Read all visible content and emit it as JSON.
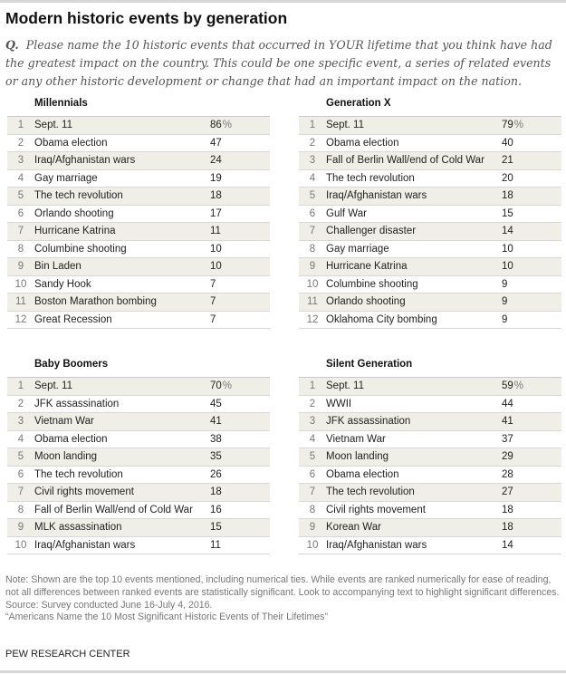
{
  "title": "Modern historic events by generation",
  "question_prefix": "Q.",
  "question": "Please name the 10 historic events that occurred in YOUR lifetime that you think have had the greatest impact on the country. This could be one specific event, a series of related events or any other historic development or change that had an important impact on the nation.",
  "percent_sign": "%",
  "chart_data": {
    "type": "table",
    "tables": [
      {
        "group": "Millennials",
        "rows": [
          [
            "1",
            "Sept. 11",
            86
          ],
          [
            "2",
            "Obama election",
            47
          ],
          [
            "3",
            "Iraq/Afghanistan wars",
            24
          ],
          [
            "4",
            "Gay marriage",
            19
          ],
          [
            "5",
            "The tech revolution",
            18
          ],
          [
            "6",
            "Orlando shooting",
            17
          ],
          [
            "7",
            "Hurricane Katrina",
            11
          ],
          [
            "8",
            "Columbine shooting",
            10
          ],
          [
            "9",
            "Bin Laden",
            10
          ],
          [
            "10",
            "Sandy Hook",
            7
          ],
          [
            "11",
            "Boston Marathon bombing",
            7
          ],
          [
            "12",
            "Great Recession",
            7
          ]
        ]
      },
      {
        "group": "Generation X",
        "rows": [
          [
            "1",
            "Sept. 11",
            79
          ],
          [
            "2",
            "Obama election",
            40
          ],
          [
            "3",
            "Fall of Berlin Wall/end of Cold War",
            21
          ],
          [
            "4",
            "The tech revolution",
            20
          ],
          [
            "5",
            "Iraq/Afghanistan wars",
            18
          ],
          [
            "6",
            "Gulf War",
            15
          ],
          [
            "7",
            "Challenger disaster",
            14
          ],
          [
            "8",
            "Gay marriage",
            10
          ],
          [
            "9",
            "Hurricane Katrina",
            10
          ],
          [
            "10",
            "Columbine shooting",
            9
          ],
          [
            "11",
            "Orlando shooting",
            9
          ],
          [
            "12",
            "Oklahoma City bombing",
            9
          ]
        ]
      },
      {
        "group": "Baby Boomers",
        "rows": [
          [
            "1",
            "Sept. 11",
            70
          ],
          [
            "2",
            "JFK assassination",
            45
          ],
          [
            "3",
            "Vietnam War",
            41
          ],
          [
            "4",
            "Obama election",
            38
          ],
          [
            "5",
            "Moon landing",
            35
          ],
          [
            "6",
            "The tech revolution",
            26
          ],
          [
            "7",
            "Civil rights movement",
            18
          ],
          [
            "8",
            "Fall of Berlin Wall/end of Cold War",
            16
          ],
          [
            "9",
            "MLK assassination",
            15
          ],
          [
            "10",
            "Iraq/Afghanistan wars",
            11
          ]
        ]
      },
      {
        "group": "Silent Generation",
        "rows": [
          [
            "1",
            "Sept. 11",
            59
          ],
          [
            "2",
            "WWII",
            44
          ],
          [
            "3",
            "JFK assassination",
            41
          ],
          [
            "4",
            "Vietnam War",
            37
          ],
          [
            "5",
            "Moon landing",
            29
          ],
          [
            "6",
            "Obama election",
            28
          ],
          [
            "7",
            "The tech revolution",
            27
          ],
          [
            "8",
            "Civil rights movement",
            18
          ],
          [
            "9",
            "Korean War",
            18
          ],
          [
            "10",
            "Iraq/Afghanistan wars",
            14
          ]
        ]
      }
    ]
  },
  "notes": {
    "note": "Note: Shown are the top 10 events mentioned, including numerical ties. While events are ranked numerically for ease of reading, not all differences between ranked events are statistically significant. Look to accompanying text to highlight significant differences.",
    "source": "Source: Survey conducted June 16-July 4, 2016.",
    "report": "“Americans Name the 10 Most Significant Historic Events of Their Lifetimes”"
  },
  "brand": "PEW RESEARCH CENTER"
}
